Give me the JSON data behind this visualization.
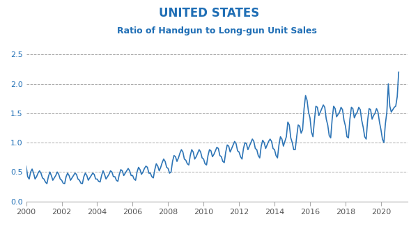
{
  "title": "UNITED STATES",
  "subtitle": "Ratio of Handgun to Long-gun Unit Sales",
  "title_color": "#1f6eb5",
  "subtitle_color": "#1f6eb5",
  "line_color": "#2e75b6",
  "background_color": "#ffffff",
  "grid_color": "#aaaaaa",
  "xlim": [
    2000,
    2021.5
  ],
  "ylim": [
    0.0,
    2.5
  ],
  "yticks": [
    0.0,
    0.5,
    1.0,
    1.5,
    2.0,
    2.5
  ],
  "xticks": [
    2000,
    2002,
    2004,
    2006,
    2008,
    2010,
    2012,
    2014,
    2016,
    2018,
    2020
  ],
  "values": [
    0.6,
    0.42,
    0.38,
    0.5,
    0.55,
    0.48,
    0.38,
    0.42,
    0.48,
    0.52,
    0.48,
    0.4,
    0.38,
    0.33,
    0.3,
    0.42,
    0.5,
    0.44,
    0.36,
    0.4,
    0.44,
    0.5,
    0.46,
    0.38,
    0.36,
    0.31,
    0.3,
    0.42,
    0.48,
    0.44,
    0.36,
    0.4,
    0.44,
    0.48,
    0.46,
    0.38,
    0.36,
    0.31,
    0.3,
    0.42,
    0.48,
    0.44,
    0.36,
    0.4,
    0.44,
    0.48,
    0.46,
    0.38,
    0.38,
    0.34,
    0.33,
    0.44,
    0.52,
    0.46,
    0.38,
    0.42,
    0.46,
    0.52,
    0.5,
    0.42,
    0.42,
    0.36,
    0.34,
    0.46,
    0.54,
    0.52,
    0.44,
    0.48,
    0.52,
    0.56,
    0.52,
    0.44,
    0.44,
    0.38,
    0.36,
    0.5,
    0.58,
    0.54,
    0.46,
    0.5,
    0.56,
    0.6,
    0.58,
    0.48,
    0.48,
    0.42,
    0.4,
    0.54,
    0.64,
    0.6,
    0.52,
    0.58,
    0.66,
    0.72,
    0.68,
    0.58,
    0.56,
    0.48,
    0.5,
    0.68,
    0.78,
    0.76,
    0.68,
    0.74,
    0.82,
    0.88,
    0.84,
    0.72,
    0.7,
    0.64,
    0.62,
    0.78,
    0.88,
    0.84,
    0.72,
    0.76,
    0.82,
    0.88,
    0.84,
    0.74,
    0.72,
    0.64,
    0.62,
    0.78,
    0.88,
    0.86,
    0.76,
    0.8,
    0.86,
    0.92,
    0.9,
    0.78,
    0.76,
    0.68,
    0.66,
    0.84,
    0.96,
    0.94,
    0.84,
    0.9,
    0.96,
    1.02,
    0.98,
    0.86,
    0.84,
    0.76,
    0.72,
    0.9,
    1.0,
    0.98,
    0.88,
    0.94,
    1.0,
    1.06,
    1.02,
    0.9,
    0.88,
    0.78,
    0.74,
    0.94,
    1.04,
    1.0,
    0.9,
    0.96,
    1.02,
    1.06,
    1.02,
    0.9,
    0.88,
    0.78,
    0.74,
    0.96,
    1.1,
    1.06,
    0.94,
    1.02,
    1.1,
    1.35,
    1.3,
    1.08,
    1.0,
    0.88,
    0.88,
    1.1,
    1.3,
    1.28,
    1.16,
    1.22,
    1.58,
    1.8,
    1.72,
    1.52,
    1.42,
    1.18,
    1.1,
    1.38,
    1.62,
    1.6,
    1.46,
    1.52,
    1.58,
    1.64,
    1.6,
    1.4,
    1.3,
    1.12,
    1.08,
    1.4,
    1.62,
    1.58,
    1.44,
    1.48,
    1.52,
    1.6,
    1.56,
    1.38,
    1.28,
    1.1,
    1.08,
    1.4,
    1.6,
    1.58,
    1.42,
    1.48,
    1.52,
    1.6,
    1.56,
    1.38,
    1.26,
    1.1,
    1.06,
    1.38,
    1.58,
    1.56,
    1.4,
    1.46,
    1.5,
    1.58,
    1.52,
    1.35,
    1.22,
    1.06,
    1.0,
    1.32,
    1.52,
    2.0,
    1.62,
    1.52,
    1.56,
    1.6,
    1.62,
    1.78,
    2.2
  ]
}
